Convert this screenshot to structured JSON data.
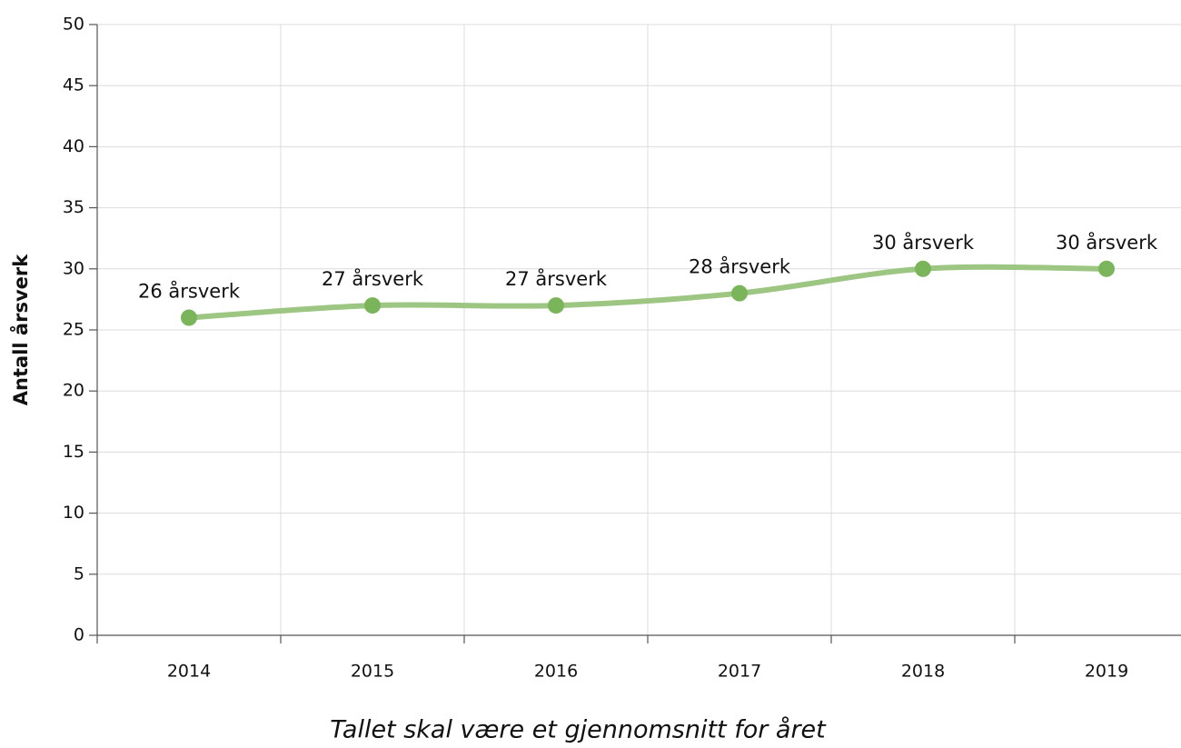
{
  "chart_data": {
    "type": "line",
    "x_label": "Tallet skal være et gjennomsnitt for året",
    "y_label": "Antall årsverk",
    "categories": [
      "2014",
      "2015",
      "2016",
      "2017",
      "2018",
      "2019"
    ],
    "series": [
      {
        "name": "Antall årsverk",
        "color": "#7ab55c",
        "values": [
          26,
          27,
          27,
          28,
          30,
          30
        ],
        "value_labels": [
          "26 årsverk",
          "27 årsverk",
          "27 årsverk",
          "28 årsverk",
          "30 årsverk",
          "30 årsverk"
        ]
      }
    ],
    "ylim": [
      0,
      50
    ],
    "yticks": [
      0,
      5,
      10,
      15,
      20,
      25,
      30,
      35,
      40,
      45,
      50
    ],
    "grid": true
  }
}
